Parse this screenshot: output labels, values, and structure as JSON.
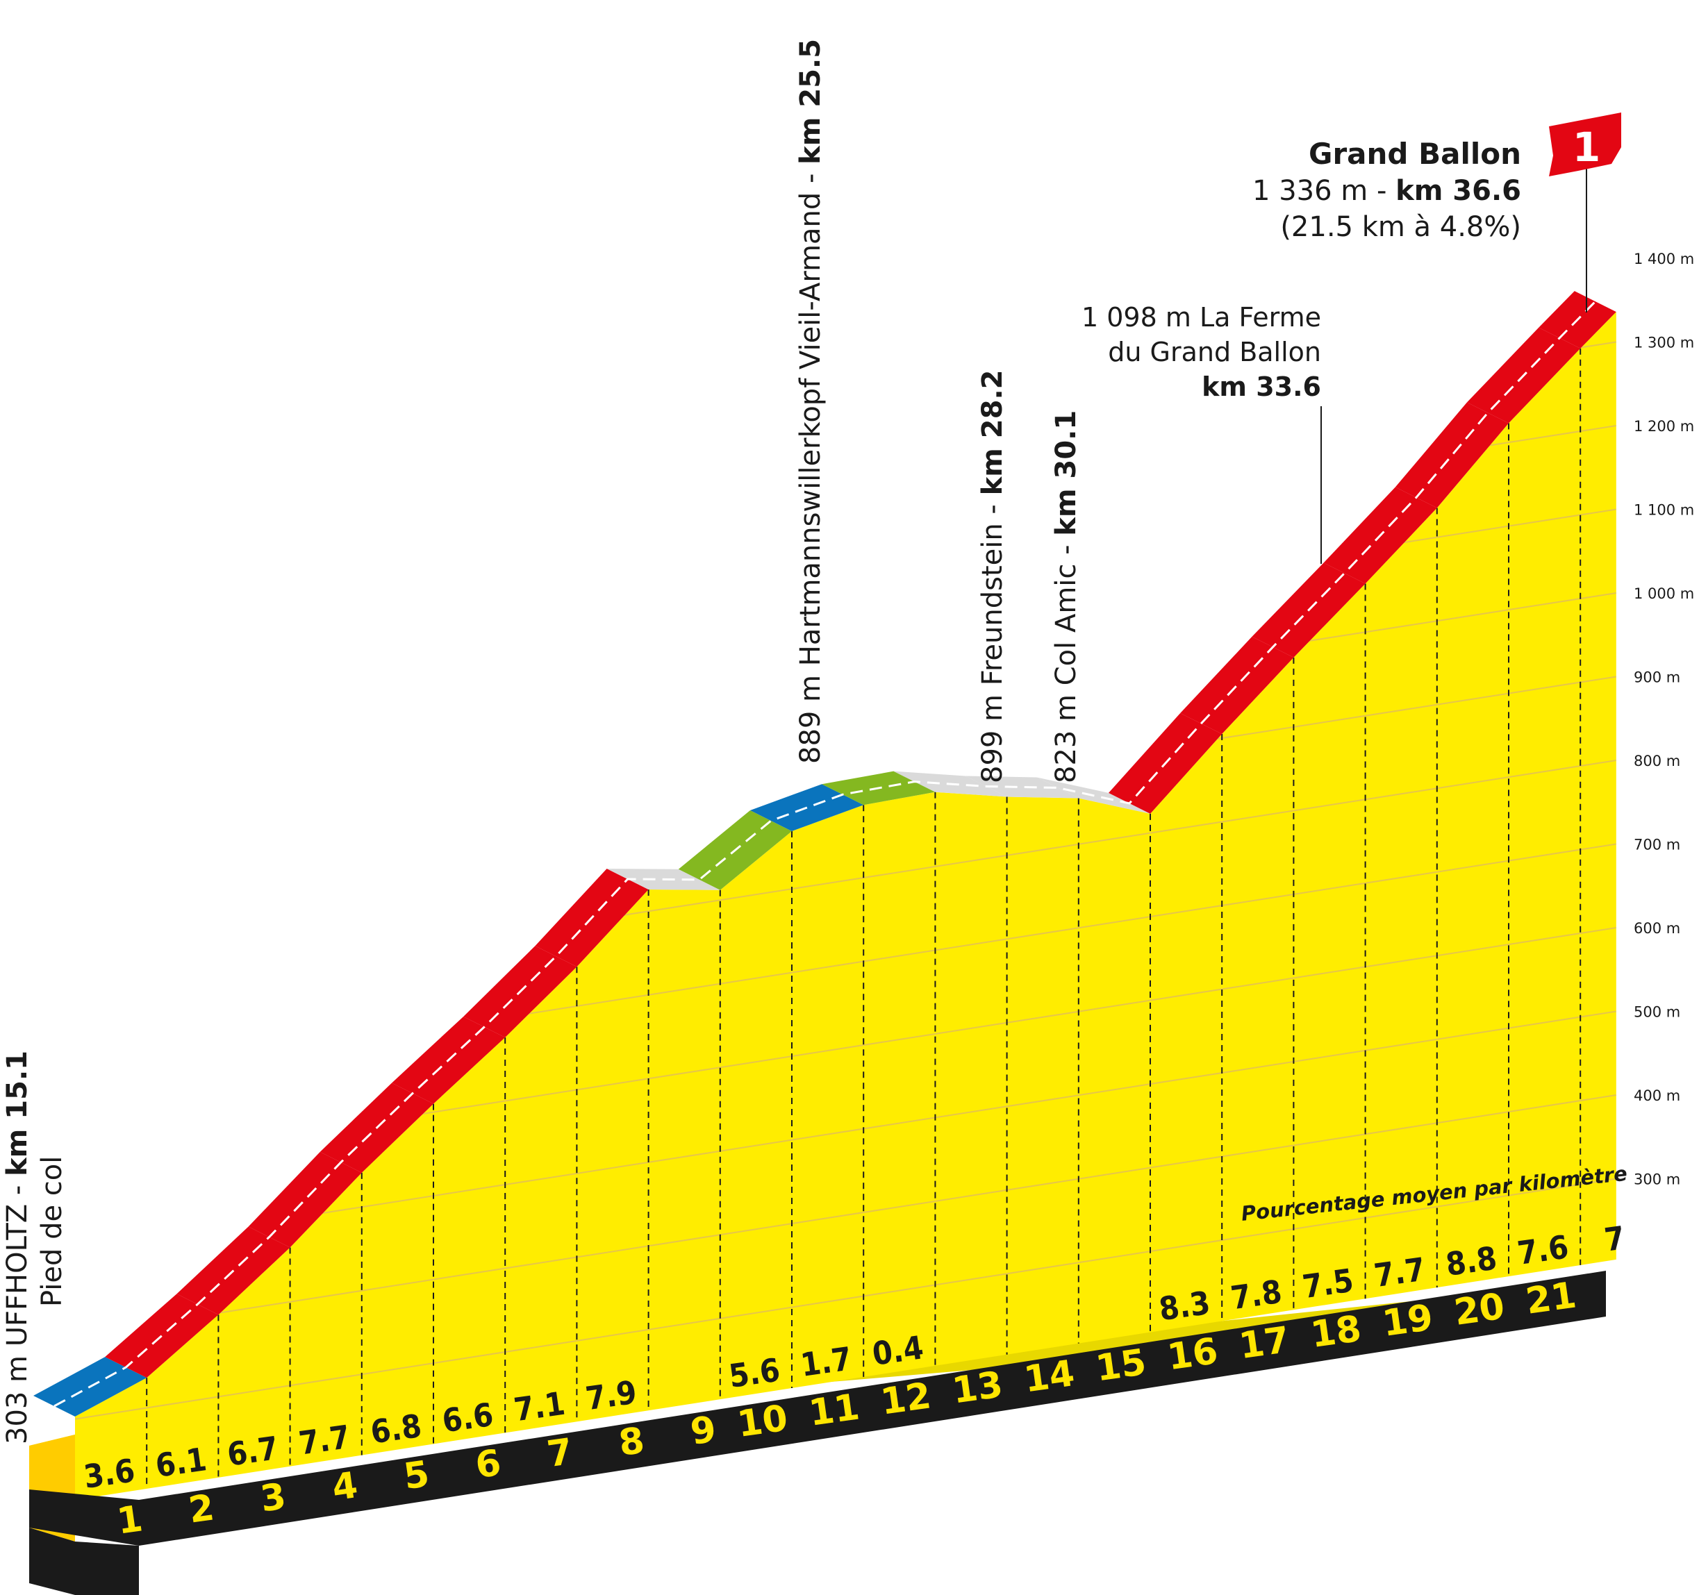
{
  "summit": {
    "name": "Grand Ballon",
    "alt_prefix": "1 336 m - ",
    "km_label": "km 36.6",
    "climb_stats": "(21.5 km à 4.8%)",
    "category": "1"
  },
  "caption": "Pourcentage moyen par kilomètre",
  "points": [
    {
      "line1": "303 m UFFHOLTZ - ",
      "line1_bold": "km 15.1",
      "line2": "Pied de col"
    },
    {
      "text": "889 m Hartmannswillerkopf Vieil-Armand - ",
      "bold": "km 25.5"
    },
    {
      "text": "899 m Freundstein - ",
      "bold": "km 28.2"
    },
    {
      "text": "823 m Col Amic - ",
      "bold": "km 30.1"
    },
    {
      "lines": [
        "1 098 m La Ferme",
        "du Grand Ballon"
      ],
      "bold": "km 33.6"
    }
  ],
  "colors": {
    "profile_fill": "#ffed00",
    "start_face": "#ffcc00",
    "base": "#1a1a1a",
    "km_number": "#ffe600",
    "flag": "#e30613",
    "difficulty": {
      "flat": "#dadada",
      "easy": "#0a74bd",
      "moderate": "#84b820",
      "hard": "#e30613"
    }
  },
  "chart_data": {
    "type": "area",
    "title": "Grand Ballon",
    "ylim": [
      300,
      1400
    ],
    "yticks": [
      "1 400 m",
      "1 300 m",
      "1 200 m",
      "1 100 m",
      "1 000 m",
      "900 m",
      "800 m",
      "700 m",
      "600 m",
      "500 m",
      "400 m",
      "300 m"
    ],
    "ytick_values": [
      1400,
      1300,
      1200,
      1100,
      1000,
      900,
      800,
      700,
      600,
      500,
      400,
      300
    ],
    "km_marks": [
      "1",
      "2",
      "3",
      "4",
      "5",
      "6",
      "7",
      "8",
      "9",
      "10",
      "11",
      "12",
      "13",
      "14",
      "15",
      "16",
      "17",
      "18",
      "19",
      "20",
      "21"
    ],
    "segments": [
      {
        "km": 1,
        "pct": "3.6",
        "difficulty": "easy"
      },
      {
        "km": 2,
        "pct": "6.1",
        "difficulty": "hard"
      },
      {
        "km": 3,
        "pct": "6.7",
        "difficulty": "hard"
      },
      {
        "km": 4,
        "pct": "7.7",
        "difficulty": "hard"
      },
      {
        "km": 5,
        "pct": "6.8",
        "difficulty": "hard"
      },
      {
        "km": 6,
        "pct": "6.6",
        "difficulty": "hard"
      },
      {
        "km": 7,
        "pct": "7.1",
        "difficulty": "hard"
      },
      {
        "km": 8,
        "pct": "7.9",
        "difficulty": "hard"
      },
      {
        "km": 9,
        "pct": "",
        "difficulty": "flat"
      },
      {
        "km": 10,
        "pct": "5.6",
        "difficulty": "moderate"
      },
      {
        "km": 11,
        "pct": "1.7",
        "difficulty": "easy"
      },
      {
        "km": 12,
        "pct": "0.4",
        "difficulty": "moderate"
      },
      {
        "km": 13,
        "pct": "",
        "difficulty": "flat"
      },
      {
        "km": 14,
        "pct": "",
        "difficulty": "flat"
      },
      {
        "km": 15,
        "pct": "",
        "difficulty": "flat"
      },
      {
        "km": 16,
        "pct": "8.3",
        "difficulty": "hard"
      },
      {
        "km": 17,
        "pct": "7.8",
        "difficulty": "hard"
      },
      {
        "km": 18,
        "pct": "7.5",
        "difficulty": "hard"
      },
      {
        "km": 19,
        "pct": "7.7",
        "difficulty": "hard"
      },
      {
        "km": 20,
        "pct": "8.8",
        "difficulty": "hard"
      },
      {
        "km": 21,
        "pct": "7.6",
        "difficulty": "hard"
      },
      {
        "km": 22,
        "pct": "7",
        "difficulty": "hard"
      }
    ],
    "profile_km": [
      0,
      1,
      2,
      3,
      4,
      5,
      6,
      7,
      8,
      9,
      10,
      11,
      12,
      13,
      14,
      15,
      16,
      17,
      18,
      19,
      20,
      21,
      21.5
    ],
    "profile_alt": [
      303,
      336,
      398,
      465,
      541,
      610,
      676,
      747,
      826,
      812,
      869,
      887,
      889,
      870,
      855,
      823,
      905,
      983,
      1058,
      1135,
      1223,
      1299,
      1336
    ]
  }
}
